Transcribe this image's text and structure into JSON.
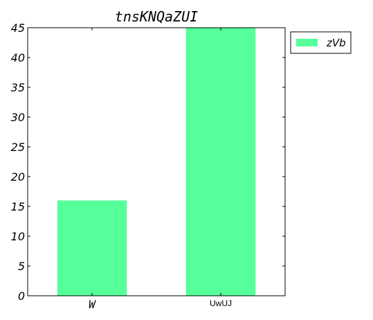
{
  "chart_data": {
    "type": "bar",
    "title": "tnsKNQaZUI",
    "categories": [
      "W",
      "UwUJ"
    ],
    "series": [
      {
        "name": "zVb",
        "values": [
          16,
          45
        ]
      }
    ],
    "ylim": [
      0,
      45
    ],
    "yticks": [
      0,
      5,
      10,
      15,
      20,
      25,
      30,
      35,
      40,
      45
    ],
    "xlabel": "",
    "ylabel": "",
    "grid": false,
    "legend": {
      "placement": "outside-top-right"
    },
    "colors": {
      "bar": "#55ff99",
      "axes": "#000000",
      "background": "#ffffff"
    }
  }
}
